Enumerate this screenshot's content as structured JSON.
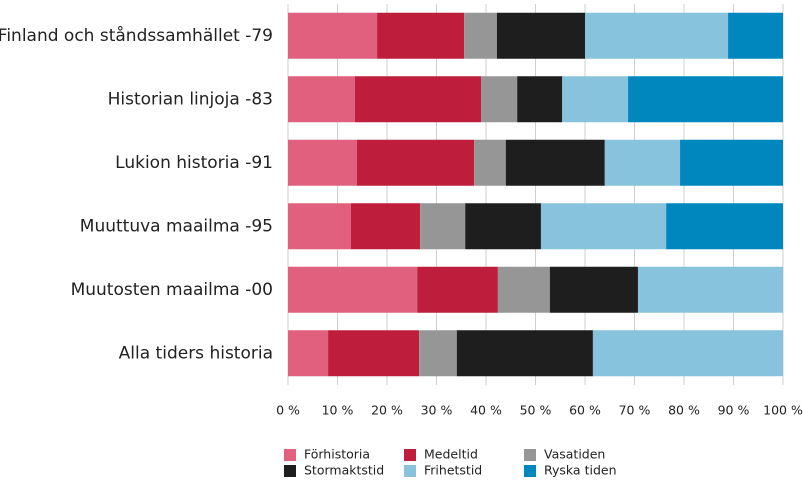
{
  "chart_data": {
    "type": "stacked_bar_horizontal",
    "categories": [
      "Finland och ståndssamhället -79",
      "Historian linjoja -83",
      "Lukion historia -91",
      "Muuttuva maailma -95",
      "Muutosten maailma -00",
      "Alla tiders historia"
    ],
    "series": [
      {
        "name": "Förhistoria",
        "color": "#e0607e",
        "values": [
          18,
          13.5,
          13.9,
          12.7,
          26.1,
          8.1
        ]
      },
      {
        "name": "Medeltid",
        "color": "#be1e3c",
        "values": [
          17.6,
          25.5,
          23.7,
          14.0,
          16.3,
          18.4
        ]
      },
      {
        "name": "Vasatiden",
        "color": "#969696",
        "values": [
          6.6,
          7.3,
          6.4,
          9.1,
          10.5,
          7.6
        ]
      },
      {
        "name": "Stormaktstid",
        "color": "#1e1e1e",
        "values": [
          17.8,
          9.1,
          20.0,
          15.3,
          17.8,
          27.5
        ]
      },
      {
        "name": "Frihetstid",
        "color": "#87c3dc",
        "values": [
          28.9,
          13.3,
          15.2,
          25.3,
          29.3,
          38.4
        ]
      },
      {
        "name": "Ryska tiden",
        "color": "#0087be",
        "values": [
          11.1,
          31.3,
          20.8,
          23.6,
          0,
          0
        ]
      }
    ],
    "xlim": [
      0,
      100
    ],
    "xticks": [
      {
        "value": 0,
        "label": "0 %"
      },
      {
        "value": 10,
        "label": "10 %"
      },
      {
        "value": 20,
        "label": "20 %"
      },
      {
        "value": 30,
        "label": "30 %"
      },
      {
        "value": 40,
        "label": "40 %"
      },
      {
        "value": 50,
        "label": "50 %"
      },
      {
        "value": 60,
        "label": "60 %"
      },
      {
        "value": 70,
        "label": "70 %"
      },
      {
        "value": 80,
        "label": "80 %"
      },
      {
        "value": 90,
        "label": "90 %"
      },
      {
        "value": 100,
        "label": "100 %"
      }
    ],
    "grid": true,
    "legend": "bottom"
  }
}
